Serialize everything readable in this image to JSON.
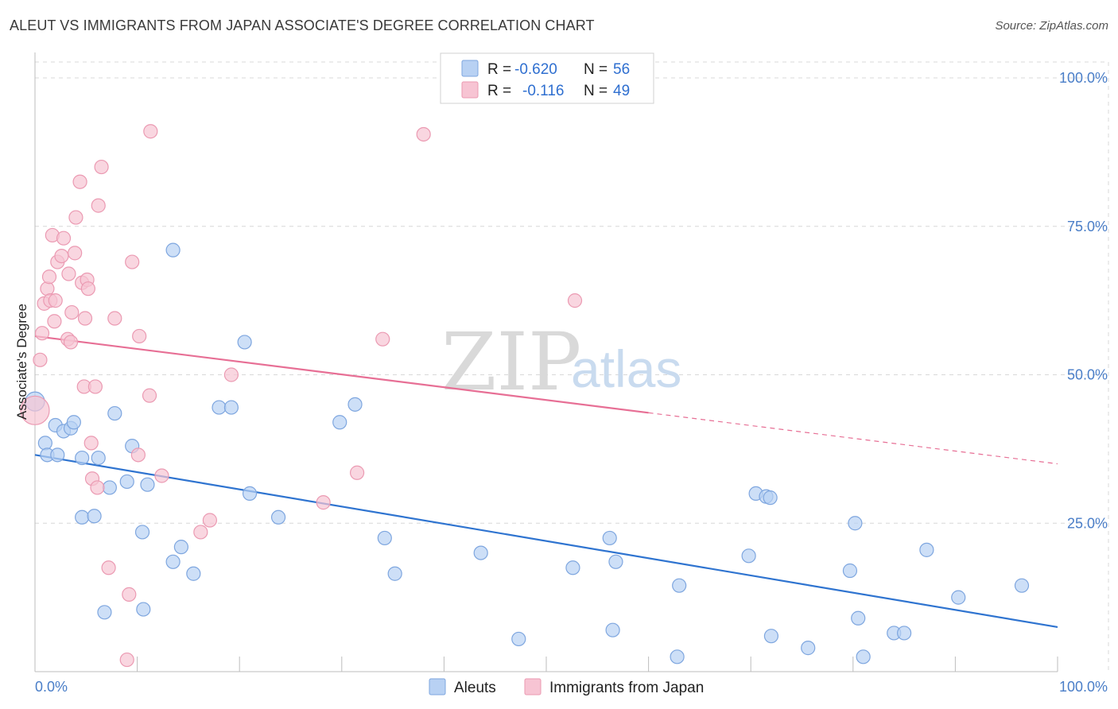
{
  "title": "ALEUT VS IMMIGRANTS FROM JAPAN ASSOCIATE'S DEGREE CORRELATION CHART",
  "source": "Source: ZipAtlas.com",
  "watermark": {
    "zip": "ZIP",
    "atlas": "atlas"
  },
  "colors": {
    "blue_fill": "#b8d1f3",
    "blue_stroke": "#7ea6df",
    "blue_line": "#2f74d0",
    "pink_fill": "#f7c4d3",
    "pink_stroke": "#eb9ab2",
    "pink_line": "#e76f95",
    "tick": "#4a7ec8",
    "grid": "#d8d8d8"
  },
  "legend": {
    "rows": [
      {
        "r_label": "R =",
        "r_value": "-0.620",
        "n_label": "N =",
        "n_value": "56"
      },
      {
        "r_label": "R =",
        "r_value": "-0.116",
        "n_label": "N =",
        "n_value": "49"
      }
    ],
    "bottom": [
      "Aleuts",
      "Immigrants from Japan"
    ]
  },
  "chart_data": {
    "type": "scatter",
    "ylabel": "Associate's Degree",
    "xlim": [
      0,
      100
    ],
    "ylim": [
      0,
      100
    ],
    "x_tick_labels": [
      "0.0%",
      "100.0%"
    ],
    "y_tick_labels": [
      "25.0%",
      "50.0%",
      "75.0%",
      "100.0%"
    ],
    "y_ticks": [
      25,
      50,
      75,
      100
    ],
    "grid": true,
    "legend_position": "top-center",
    "series": [
      {
        "name": "Aleuts",
        "color": "#b8d1f3",
        "trend": {
          "x": [
            0,
            100
          ],
          "y": [
            36.5,
            7.5
          ],
          "solid_to": 100
        },
        "points": [
          [
            0,
            45.5
          ],
          [
            1,
            38.5
          ],
          [
            1.2,
            36.5
          ],
          [
            2,
            41.5
          ],
          [
            2.2,
            36.5
          ],
          [
            2.8,
            40.5
          ],
          [
            3.5,
            41
          ],
          [
            3.8,
            42
          ],
          [
            4.6,
            36
          ],
          [
            4.6,
            26
          ],
          [
            5.8,
            26.2
          ],
          [
            6.2,
            36
          ],
          [
            6.8,
            10
          ],
          [
            7.3,
            31
          ],
          [
            7.8,
            43.5
          ],
          [
            9,
            32
          ],
          [
            9.5,
            38
          ],
          [
            10.5,
            23.5
          ],
          [
            10.6,
            10.5
          ],
          [
            11,
            31.5
          ],
          [
            13.5,
            71
          ],
          [
            13.5,
            18.5
          ],
          [
            14.3,
            21
          ],
          [
            15.5,
            16.5
          ],
          [
            18,
            44.5
          ],
          [
            19.2,
            44.5
          ],
          [
            20.5,
            55.5
          ],
          [
            21,
            30
          ],
          [
            23.8,
            26
          ],
          [
            29.8,
            42
          ],
          [
            31.3,
            45
          ],
          [
            34.2,
            22.5
          ],
          [
            35.2,
            16.5
          ],
          [
            43.6,
            20
          ],
          [
            47.3,
            5.5
          ],
          [
            52.6,
            17.5
          ],
          [
            56.2,
            22.5
          ],
          [
            56.5,
            7
          ],
          [
            56.8,
            18.5
          ],
          [
            62.8,
            2.5
          ],
          [
            63,
            14.5
          ],
          [
            69.8,
            19.5
          ],
          [
            70.5,
            30
          ],
          [
            71.5,
            29.5
          ],
          [
            71.9,
            29.3
          ],
          [
            72,
            6
          ],
          [
            75.6,
            4
          ],
          [
            79.7,
            17
          ],
          [
            80.2,
            25
          ],
          [
            80.5,
            9
          ],
          [
            81,
            2.5
          ],
          [
            84,
            6.5
          ],
          [
            85,
            6.5
          ],
          [
            87.2,
            20.5
          ],
          [
            90.3,
            12.5
          ],
          [
            96.5,
            14.5
          ]
        ]
      },
      {
        "name": "Immigrants from Japan",
        "color": "#f7c4d3",
        "trend": {
          "x": [
            0,
            100
          ],
          "y": [
            56.5,
            35
          ],
          "solid_to": 60
        },
        "points": [
          [
            0,
            44
          ],
          [
            0.5,
            52.5
          ],
          [
            0.7,
            57
          ],
          [
            0.9,
            62
          ],
          [
            1.2,
            64.5
          ],
          [
            1.4,
            66.5
          ],
          [
            1.5,
            62.5
          ],
          [
            1.7,
            73.5
          ],
          [
            1.9,
            59
          ],
          [
            2,
            62.5
          ],
          [
            2.2,
            69
          ],
          [
            2.6,
            70
          ],
          [
            2.8,
            73
          ],
          [
            3.2,
            56
          ],
          [
            3.3,
            67
          ],
          [
            3.5,
            55.5
          ],
          [
            3.6,
            60.5
          ],
          [
            3.9,
            70.5
          ],
          [
            4,
            76.5
          ],
          [
            4.4,
            82.5
          ],
          [
            4.6,
            65.5
          ],
          [
            4.8,
            48
          ],
          [
            4.9,
            59.5
          ],
          [
            5.1,
            66
          ],
          [
            5.2,
            64.5
          ],
          [
            5.5,
            38.5
          ],
          [
            5.6,
            32.5
          ],
          [
            5.9,
            48
          ],
          [
            6.1,
            31
          ],
          [
            6.2,
            78.5
          ],
          [
            6.5,
            85
          ],
          [
            7.2,
            17.5
          ],
          [
            7.8,
            59.5
          ],
          [
            9,
            2
          ],
          [
            9.2,
            13
          ],
          [
            9.5,
            69
          ],
          [
            10.1,
            36.5
          ],
          [
            10.2,
            56.5
          ],
          [
            11.2,
            46.5
          ],
          [
            12.4,
            33
          ],
          [
            16.2,
            23.5
          ],
          [
            17.1,
            25.5
          ],
          [
            19.2,
            50
          ],
          [
            28.2,
            28.5
          ],
          [
            31.5,
            33.5
          ],
          [
            34,
            56
          ],
          [
            38,
            90.5
          ],
          [
            52.8,
            62.5
          ],
          [
            11.3,
            91
          ]
        ]
      }
    ]
  }
}
